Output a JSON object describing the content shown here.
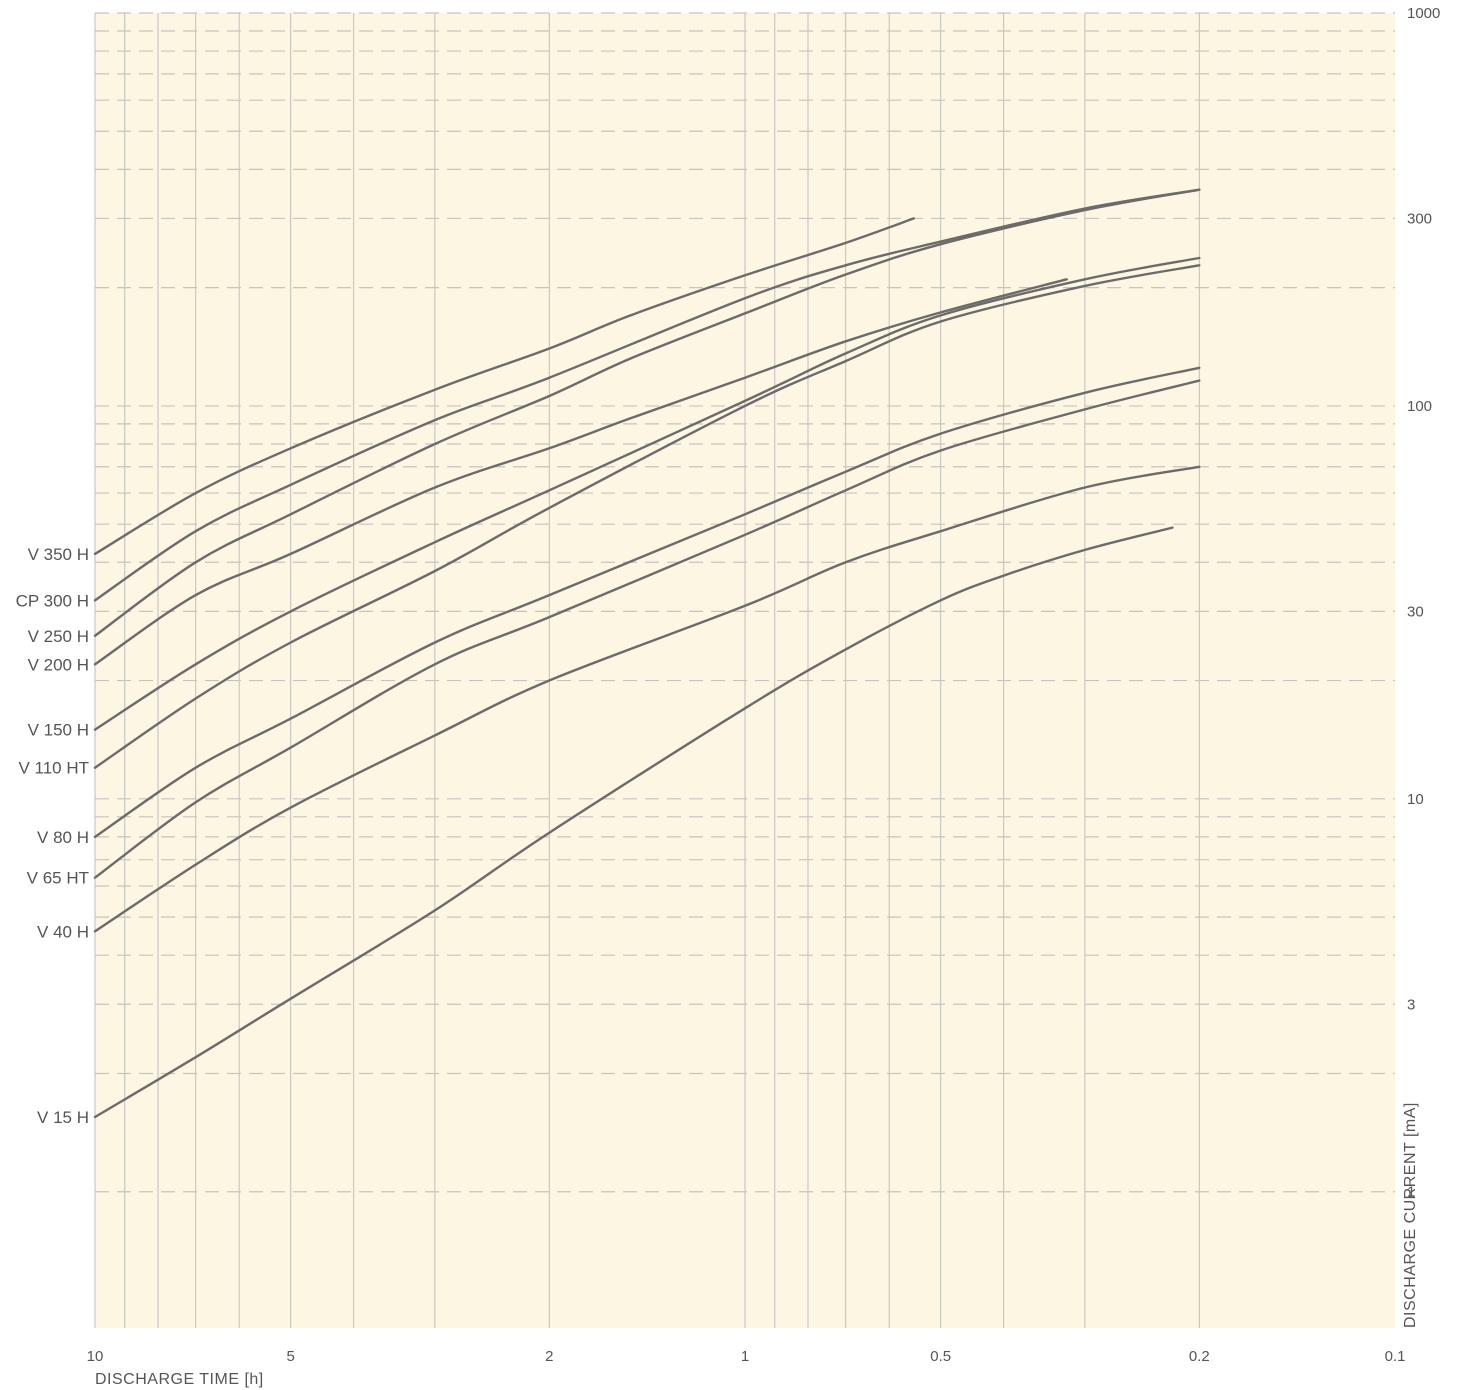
{
  "chart_data": {
    "type": "line",
    "title": "",
    "xlabel": "DISCHARGE TIME [h]",
    "ylabel": "DISCHARGE CURRENT [mA]",
    "x_scale": "log",
    "y_scale": "log",
    "x_reversed": true,
    "xlim": [
      10,
      0.1
    ],
    "ylim": [
      0.45,
      1000
    ],
    "x_ticks": [
      10,
      5,
      2,
      1,
      0.5,
      0.2,
      0.1
    ],
    "x_tick_labels": [
      "10",
      "5",
      "2",
      "1",
      "0.5",
      "0.2",
      "0.1"
    ],
    "y_ticks": [
      1000,
      300,
      100,
      30,
      10,
      3,
      1
    ],
    "y_tick_labels": [
      "1000",
      "300",
      "100",
      "30",
      "10",
      "3",
      "1"
    ],
    "y_axis_side": "right",
    "grid": true,
    "legend": "none",
    "series": [
      {
        "name": "V 350 H",
        "x": [
          10,
          7,
          5,
          3,
          2,
          1.5,
          1,
          0.7,
          0.55
        ],
        "y": [
          42,
          60,
          78,
          110,
          140,
          170,
          215,
          260,
          300
        ]
      },
      {
        "name": "CP 300 H",
        "x": [
          10,
          7,
          5,
          3,
          2,
          1,
          0.7,
          0.5,
          0.3,
          0.2
        ],
        "y": [
          32,
          48,
          63,
          92,
          118,
          188,
          228,
          262,
          318,
          355
        ]
      },
      {
        "name": "V 250 H",
        "x": [
          10,
          7,
          5,
          3,
          2,
          1.5,
          1,
          0.7,
          0.5,
          0.3,
          0.2
        ],
        "y": [
          26,
          40,
          53,
          80,
          106,
          132,
          172,
          216,
          258,
          315,
          355
        ]
      },
      {
        "name": "V 200 H",
        "x": [
          10,
          7,
          5,
          3,
          2,
          1.5,
          1,
          0.7,
          0.5,
          0.32
        ],
        "y": [
          22,
          33,
          42,
          62,
          78,
          93,
          118,
          146,
          173,
          210
        ]
      },
      {
        "name": "V 150 H",
        "x": [
          10,
          7,
          5,
          3,
          2,
          1,
          0.7,
          0.5,
          0.3,
          0.2
        ],
        "y": [
          15,
          22,
          30,
          45,
          61,
          103,
          136,
          170,
          210,
          238
        ]
      },
      {
        "name": "V 110 HT",
        "x": [
          10,
          7,
          5,
          3,
          2,
          1,
          0.7,
          0.5,
          0.3,
          0.2
        ],
        "y": [
          12,
          18,
          25,
          38,
          55,
          100,
          130,
          164,
          202,
          228
        ]
      },
      {
        "name": "V 80 H",
        "x": [
          10,
          7,
          5,
          3,
          2,
          1,
          0.7,
          0.5,
          0.3,
          0.2
        ],
        "y": [
          8,
          12,
          16,
          25,
          33,
          53,
          68,
          85,
          108,
          125
        ]
      },
      {
        "name": "V 65 HT",
        "x": [
          10,
          7,
          5,
          3,
          2,
          1,
          0.7,
          0.5,
          0.3,
          0.2
        ],
        "y": [
          6.3,
          9.8,
          13.5,
          22,
          29,
          47,
          61,
          77,
          98,
          116
        ]
      },
      {
        "name": "V 40 H",
        "x": [
          10,
          7,
          5,
          3,
          2,
          1,
          0.7,
          0.5,
          0.3,
          0.2
        ],
        "y": [
          4.6,
          6.8,
          9.5,
          14.5,
          20,
          31,
          40,
          48,
          62,
          70
        ]
      },
      {
        "name": "V 15 H",
        "x": [
          10,
          7,
          5,
          3,
          2,
          1,
          0.7,
          0.5,
          0.4,
          0.3,
          0.22
        ],
        "y": [
          1.55,
          2.2,
          3.1,
          5.2,
          8.2,
          17,
          24,
          32,
          37,
          43,
          49
        ]
      }
    ]
  }
}
